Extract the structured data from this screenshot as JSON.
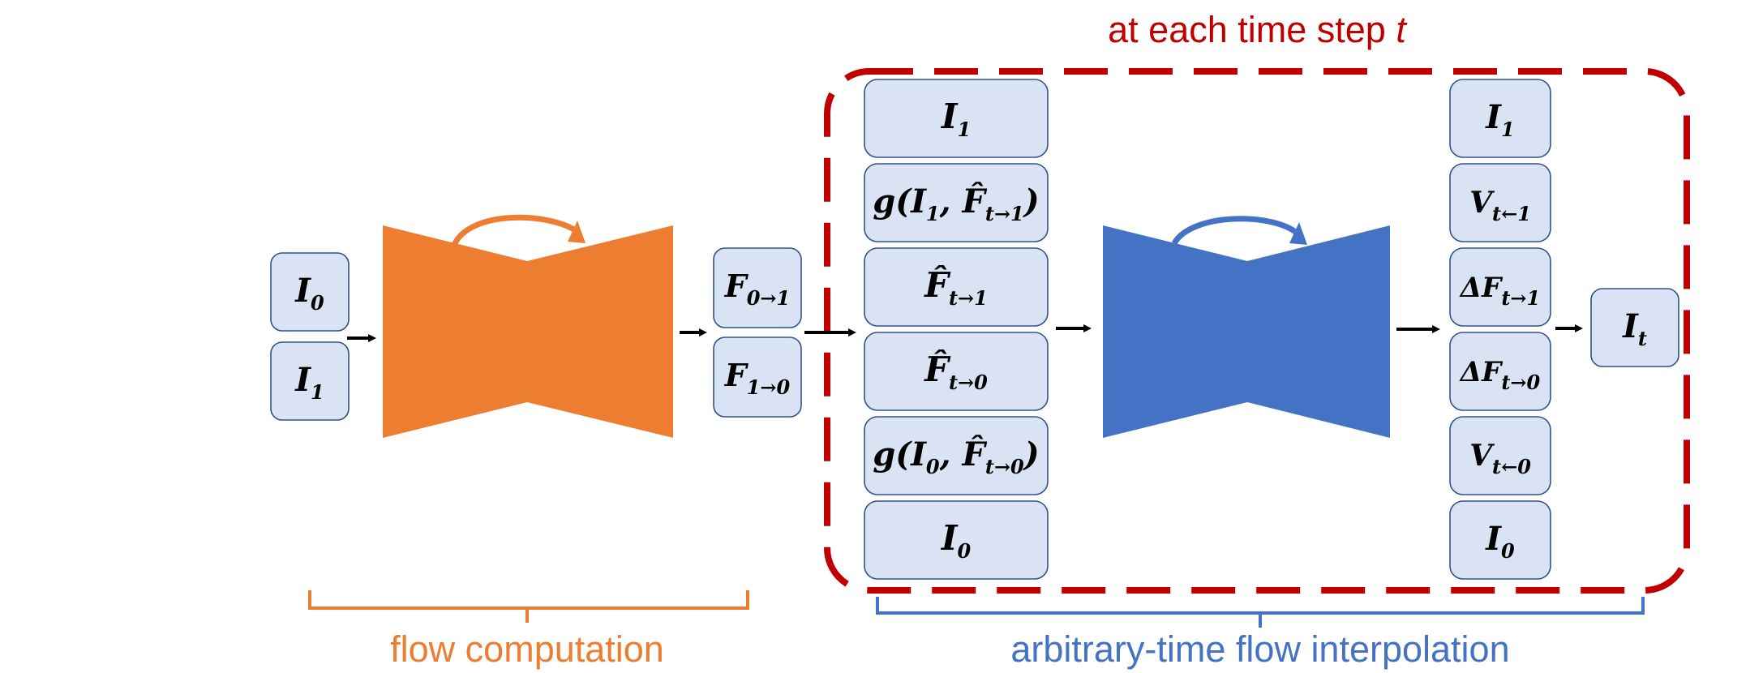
{
  "title": "at each time step t",
  "captions": {
    "left": "flow computation",
    "right": "arbitrary-time flow interpolation"
  },
  "colors": {
    "orange": "#ed7d31",
    "blue": "#4472c4",
    "red": "#c00000",
    "box_fill": "#dae3f3",
    "box_border": "#2f528f"
  },
  "inputs": [
    "I_0",
    "I_1"
  ],
  "flows": [
    "F_{0→1}",
    "F_{1→0}"
  ],
  "stage_inputs": [
    "I_1",
    "g(I_1, F̂_{t→1})",
    "F̂_{t→1}",
    "F̂_{t→0}",
    "g(I_0, F̂_{t→0})",
    "I_0"
  ],
  "stage_outputs": [
    "I_1",
    "V_{t←1}",
    "ΔF_{t→1}",
    "ΔF_{t→0}",
    "V_{t←0}",
    "I_0"
  ],
  "output": "I_t"
}
